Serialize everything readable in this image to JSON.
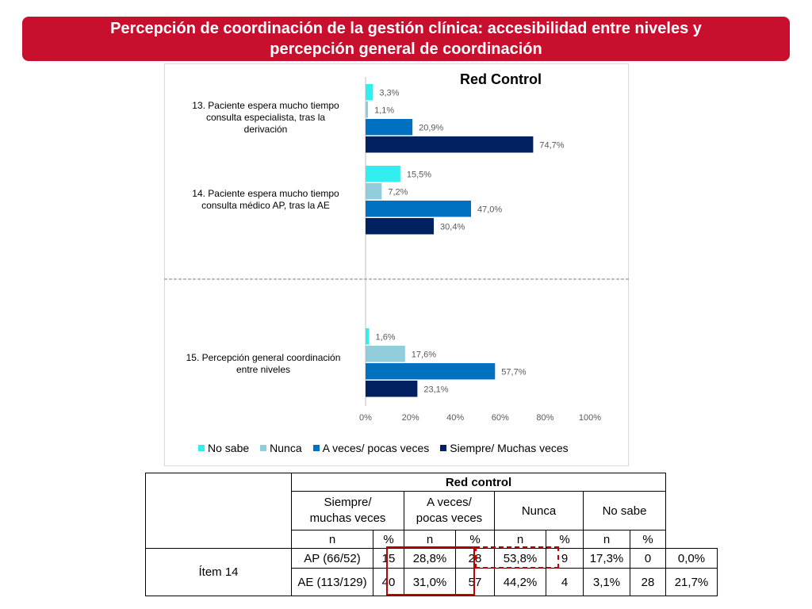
{
  "title": {
    "line1": "Percepción de coordinación de la gestión clínica: accesibilidad entre niveles y",
    "line2": "percepción general de coordinación"
  },
  "chart_data": {
    "type": "bar",
    "orientation": "horizontal",
    "title": "Red Control",
    "categories": [
      "13. Paciente espera mucho tiempo consulta especialista, tras la derivación",
      "14. Paciente espera mucho tiempo consulta  médico AP, tras la AE",
      "15. Percepción general coordinación entre niveles"
    ],
    "category_lines": [
      [
        "13. Paciente espera mucho tiempo",
        "consulta especialista, tras la",
        "derivación"
      ],
      [
        "14. Paciente espera mucho tiempo",
        "consulta  médico AP, tras la AE"
      ],
      [
        "15. Percepción general coordinación",
        "entre niveles"
      ]
    ],
    "series": [
      {
        "name": "No sabe",
        "color": "#33eeee",
        "values": [
          3.3,
          15.5,
          1.6
        ],
        "labels": [
          "3,3%",
          "15,5%",
          "1,6%"
        ]
      },
      {
        "name": "Nunca",
        "color": "#92cddc",
        "values": [
          1.1,
          7.2,
          17.6
        ],
        "labels": [
          "1,1%",
          "7,2%",
          "17,6%"
        ]
      },
      {
        "name": "A veces/ pocas veces",
        "color": "#0070c0",
        "values": [
          20.9,
          47.0,
          57.7
        ],
        "labels": [
          "20,9%",
          "47,0%",
          "57,7%"
        ]
      },
      {
        "name": "Siempre/ Muchas veces",
        "color": "#002060",
        "values": [
          74.7,
          30.4,
          23.1
        ],
        "labels": [
          "74,7%",
          "30,4%",
          "23,1%"
        ]
      }
    ],
    "xlim": [
      0,
      100
    ],
    "xticks": [
      "0%",
      "20%",
      "40%",
      "60%",
      "80%",
      "100%"
    ],
    "legend_position": "bottom"
  },
  "table": {
    "group_header": "Red control",
    "col_headers": [
      "Siempre/\nmuchas veces",
      "A veces/\npocas veces",
      "Nunca",
      "No sabe"
    ],
    "sub_headers": [
      "n",
      "%",
      "n",
      "%",
      "n",
      "%",
      "n",
      "%"
    ],
    "row_group": "Ítem 14",
    "rows": [
      {
        "label": "AP (66/52)",
        "cells": [
          "15",
          "28,8%",
          "28",
          "53,8%",
          "9",
          "17,3%",
          "0",
          "0,0%"
        ]
      },
      {
        "label": "AE (113/129)",
        "cells": [
          "40",
          "31,0%",
          "57",
          "44,2%",
          "4",
          "3,1%",
          "28",
          "21,7%"
        ]
      }
    ]
  }
}
